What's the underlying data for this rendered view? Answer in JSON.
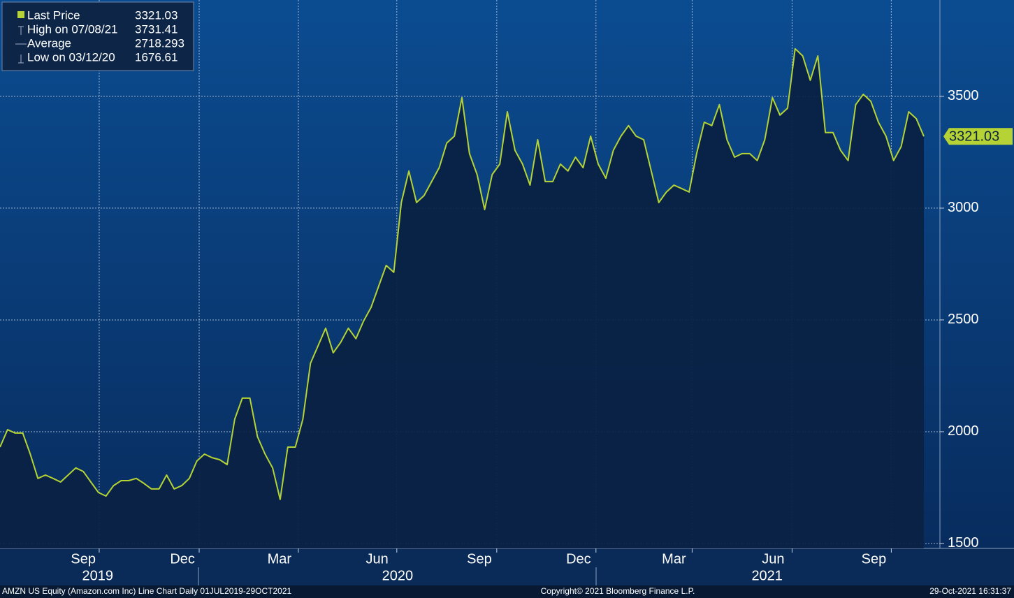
{
  "chart_data": {
    "type": "line",
    "legend": [
      {
        "label": "Last Price",
        "value": 3321.03
      },
      {
        "label": "High on 07/08/21",
        "value": 3731.41
      },
      {
        "label": "Average",
        "value": 2718.293
      },
      {
        "label": "Low on 03/12/20",
        "value": 1676.61
      }
    ],
    "series": [
      {
        "name": "Last Price",
        "color": "#b5d334",
        "values": [
          1931,
          2009,
          1994,
          1994,
          1900,
          1791,
          1806,
          1791,
          1775,
          1806,
          1838,
          1822,
          1775,
          1728,
          1712,
          1759,
          1781,
          1781,
          1791,
          1769,
          1744,
          1744,
          1806,
          1744,
          1759,
          1791,
          1869,
          1900,
          1884,
          1875,
          1853,
          2056,
          2150,
          2150,
          1978,
          1900,
          1838,
          1697,
          1931,
          1931,
          2056,
          2306,
          2384,
          2463,
          2353,
          2400,
          2463,
          2416,
          2494,
          2556,
          2650,
          2744,
          2713,
          3025,
          3166,
          3025,
          3056,
          3119,
          3181,
          3291,
          3322,
          3494,
          3244,
          3150,
          2994,
          3150,
          3197,
          3431,
          3259,
          3197,
          3103,
          3306,
          3119,
          3119,
          3197,
          3166,
          3228,
          3181,
          3322,
          3197,
          3134,
          3259,
          3322,
          3369,
          3322,
          3306,
          3166,
          3025,
          3072,
          3103,
          3088,
          3072,
          3244,
          3384,
          3369,
          3463,
          3306,
          3228,
          3244,
          3244,
          3213,
          3306,
          3494,
          3416,
          3447,
          3713,
          3681,
          3572,
          3681,
          3338,
          3338,
          3259,
          3213,
          3463,
          3509,
          3478,
          3384,
          3322,
          3213,
          3275,
          3431,
          3400,
          3321.03
        ]
      }
    ],
    "last_value_label": 3321.03,
    "xlim": [
      0,
      122
    ],
    "xticks": [
      13.1,
      26.3,
      39.4,
      52.4,
      65.6,
      78.7,
      91.4,
      104.6,
      117.7
    ],
    "month_labels": [
      {
        "value": 11.0,
        "label": "Sep"
      },
      {
        "value": 24.1,
        "label": "Dec"
      },
      {
        "value": 36.9,
        "label": "Mar"
      },
      {
        "value": 49.8,
        "label": "Jun"
      },
      {
        "value": 63.3,
        "label": "Sep"
      },
      {
        "value": 76.4,
        "label": "Dec"
      },
      {
        "value": 89.0,
        "label": "Mar"
      },
      {
        "value": 102.1,
        "label": "Jun"
      },
      {
        "value": 115.4,
        "label": "Sep"
      }
    ],
    "year_labels": [
      {
        "value": 12.9,
        "label": "2019"
      },
      {
        "value": 52.5,
        "label": "2020"
      },
      {
        "value": 101.3,
        "label": "2021"
      }
    ],
    "ylim": [
      1478,
      3931
    ],
    "yticks": [
      1500,
      2000,
      2500,
      3000,
      3500
    ],
    "grid": true,
    "footer": {
      "left": "AMZN US Equity (Amazon.com Inc) Line Chart  Daily 01JUL2019-29OCT2021",
      "center": "Copyright© 2021 Bloomberg Finance L.P.",
      "right": "29-Oct-2021 16:31:37"
    }
  }
}
